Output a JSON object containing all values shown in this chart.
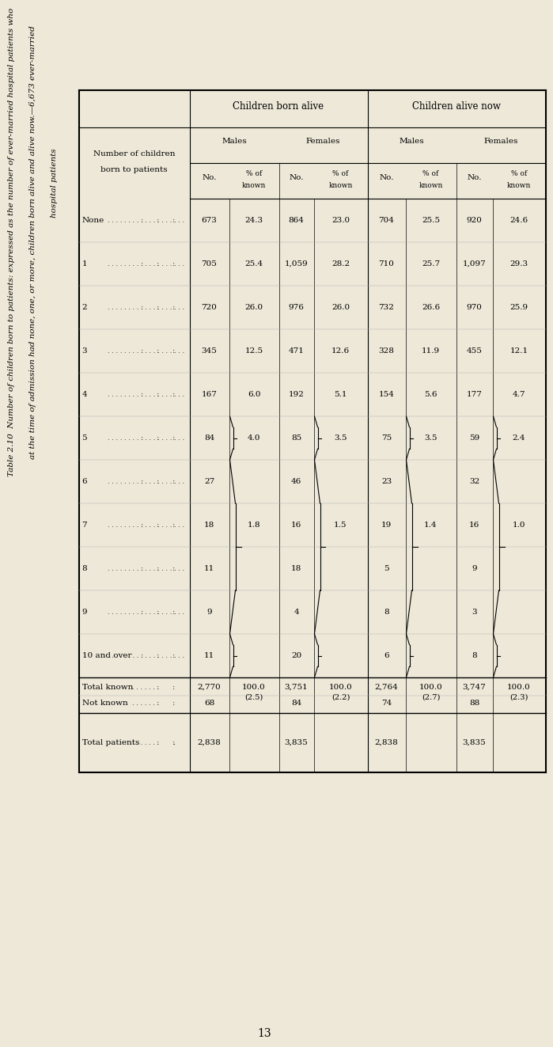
{
  "bg_color": "#ede8d8",
  "title1": "Table 2.10  Number of children born to patients: expressed as the number of ever-married hospital patients who",
  "title2": "at the time of admission had none, one, or more, children born alive and alive now.—6,673 ever-married",
  "title3": "hospital patients",
  "page_num": "13",
  "row_labels": [
    "None",
    "1",
    "2",
    "3",
    "4",
    "5",
    "6",
    "7",
    "8",
    "9",
    "10 and over"
  ],
  "m_born_no": [
    "673",
    "705",
    "720",
    "345",
    "167",
    "84",
    "27",
    "18",
    "11",
    "9",
    "11"
  ],
  "m_born_pct": [
    "24.3",
    "25.4",
    "26.0",
    "12.5",
    "6.0",
    "4.0",
    "",
    "1.8",
    "",
    "",
    ""
  ],
  "f_born_no": [
    "864",
    "1,059",
    "976",
    "471",
    "192",
    "85",
    "46",
    "16",
    "18",
    "4",
    "20"
  ],
  "f_born_pct": [
    "23.0",
    "28.2",
    "26.0",
    "12.6",
    "5.1",
    "3.5",
    "",
    "1.5",
    "",
    "",
    ""
  ],
  "m_alive_no": [
    "704",
    "710",
    "732",
    "328",
    "154",
    "75",
    "23",
    "19",
    "5",
    "8",
    "6"
  ],
  "m_alive_pct": [
    "25.5",
    "25.7",
    "26.6",
    "11.9",
    "5.6",
    "3.5",
    "",
    "1.4",
    "",
    "",
    ""
  ],
  "f_alive_no": [
    "920",
    "1,097",
    "970",
    "455",
    "177",
    "59",
    "32",
    "16",
    "9",
    "3",
    "8"
  ],
  "f_alive_pct": [
    "24.6",
    "29.3",
    "25.9",
    "12.1",
    "4.7",
    "2.4",
    "",
    "1.0",
    "",
    "",
    ""
  ],
  "brace_rows": [
    5,
    10
  ],
  "brace_inner_rows": [
    6,
    9
  ],
  "tk_m_born_no": "2,770",
  "tk_m_born_pct": "100.0",
  "tk_m_born_pct2": "(2.5)",
  "tk_f_born_no": "3,751",
  "tk_f_born_pct": "100.0",
  "tk_f_born_pct2": "(2.2)",
  "tk_m_alive_no": "2,764",
  "tk_m_alive_pct": "100.0",
  "tk_m_alive_pct2": "(2.7)",
  "tk_f_alive_no": "3,747",
  "tk_f_alive_pct": "100.0",
  "tk_f_alive_pct2": "(2.3)",
  "nk_m_born_no": "68",
  "nk_f_born_no": "84",
  "nk_m_alive_no": "74",
  "nk_f_alive_no": "88",
  "tp_m_born_no": "2,838",
  "tp_f_born_no": "3,835",
  "tp_m_alive_no": "2,838",
  "tp_f_alive_no": "3,835"
}
